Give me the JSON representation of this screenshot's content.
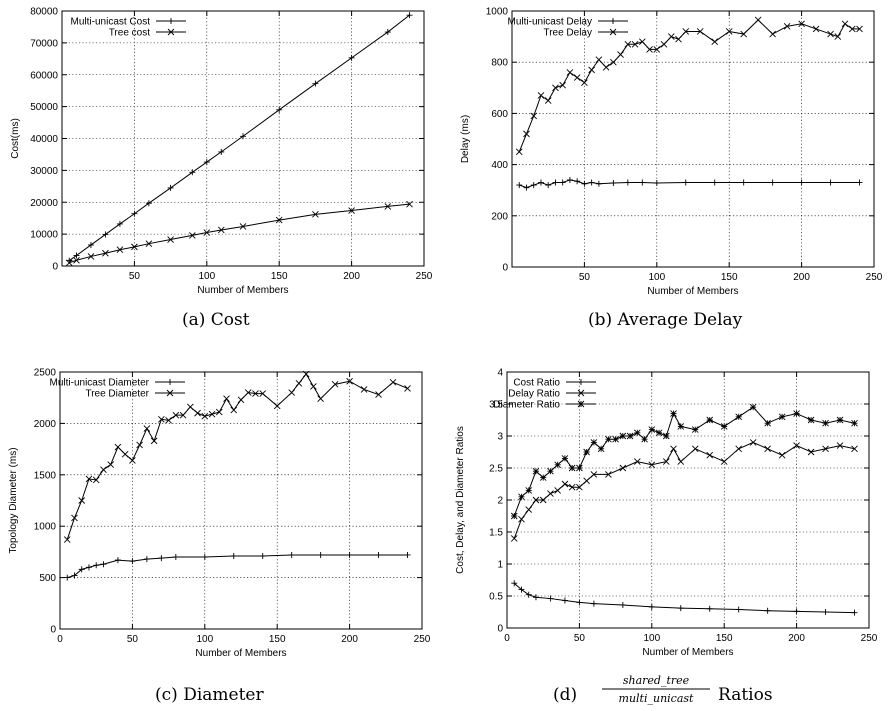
{
  "chart_data": [
    {
      "type": "line",
      "xlabel": "Number of Members",
      "ylabel": "Cost(ms)",
      "xlim": [
        0,
        250
      ],
      "ylim": [
        0,
        80000
      ],
      "xticks": [
        50,
        100,
        150,
        200,
        250
      ],
      "yticks": [
        0,
        10000,
        20000,
        30000,
        40000,
        50000,
        60000,
        70000,
        80000
      ],
      "grid": true,
      "legend_position": "top-left",
      "series": [
        {
          "name": "Multi-unicast Cost",
          "marker": "plus",
          "x": [
            5,
            10,
            20,
            30,
            40,
            50,
            60,
            75,
            90,
            100,
            110,
            125,
            150,
            175,
            200,
            225,
            240
          ],
          "y": [
            1700,
            3300,
            6600,
            9900,
            13200,
            16400,
            19700,
            24500,
            29400,
            32600,
            35800,
            40700,
            49000,
            57200,
            65300,
            73400,
            78700
          ]
        },
        {
          "name": "Tree cost",
          "marker": "cross",
          "x": [
            5,
            10,
            20,
            30,
            40,
            50,
            60,
            75,
            90,
            100,
            110,
            125,
            150,
            175,
            200,
            225,
            240
          ],
          "y": [
            1000,
            1800,
            3000,
            4000,
            5100,
            6000,
            7000,
            8300,
            9600,
            10500,
            11300,
            12400,
            14400,
            16200,
            17400,
            18700,
            19400
          ]
        }
      ],
      "caption": "(a)  Cost"
    },
    {
      "type": "line",
      "xlabel": "Number of Members",
      "ylabel": "Delay (ms)",
      "xlim": [
        0,
        250
      ],
      "ylim": [
        0,
        1000
      ],
      "xticks": [
        50,
        100,
        150,
        200,
        250
      ],
      "yticks": [
        0,
        200,
        400,
        600,
        800,
        1000
      ],
      "grid": true,
      "legend_position": "top-left",
      "series": [
        {
          "name": "Multi-unicast Delay",
          "marker": "plus",
          "x": [
            5,
            10,
            15,
            20,
            25,
            30,
            35,
            40,
            45,
            50,
            55,
            60,
            70,
            80,
            90,
            100,
            120,
            140,
            160,
            180,
            200,
            220,
            240
          ],
          "y": [
            320,
            310,
            320,
            330,
            320,
            330,
            330,
            340,
            335,
            325,
            330,
            325,
            328,
            330,
            330,
            328,
            330,
            330,
            330,
            330,
            330,
            330,
            330
          ]
        },
        {
          "name": "Tree Delay",
          "marker": "cross",
          "x": [
            5,
            10,
            15,
            20,
            25,
            30,
            35,
            40,
            45,
            50,
            55,
            60,
            65,
            70,
            75,
            80,
            85,
            90,
            95,
            100,
            105,
            110,
            115,
            120,
            130,
            140,
            150,
            160,
            170,
            180,
            190,
            200,
            210,
            220,
            225,
            230,
            235,
            240
          ],
          "y": [
            450,
            520,
            590,
            670,
            650,
            700,
            710,
            760,
            740,
            720,
            770,
            810,
            780,
            800,
            830,
            870,
            870,
            880,
            850,
            850,
            870,
            900,
            890,
            920,
            920,
            880,
            920,
            910,
            965,
            910,
            940,
            950,
            930,
            910,
            900,
            950,
            930,
            930
          ]
        }
      ],
      "caption": "(b)  Average Delay"
    },
    {
      "type": "line",
      "xlabel": "Number of Members",
      "ylabel": "Topology Diameter (ms)",
      "xlim": [
        0,
        250
      ],
      "ylim": [
        0,
        2500
      ],
      "xticks": [
        0,
        50,
        100,
        150,
        200,
        250
      ],
      "yticks": [
        0,
        500,
        1000,
        1500,
        2000,
        2500
      ],
      "grid": true,
      "legend_position": "top-left",
      "series": [
        {
          "name": "Multi-unicast Diameter",
          "marker": "plus",
          "x": [
            5,
            10,
            15,
            20,
            25,
            30,
            40,
            50,
            60,
            70,
            80,
            100,
            120,
            140,
            160,
            180,
            200,
            220,
            240
          ],
          "y": [
            500,
            520,
            580,
            600,
            620,
            630,
            670,
            660,
            680,
            690,
            700,
            700,
            710,
            710,
            720,
            720,
            720,
            720,
            720
          ]
        },
        {
          "name": "Tree Diameter",
          "marker": "cross",
          "x": [
            5,
            10,
            15,
            20,
            25,
            30,
            35,
            40,
            45,
            50,
            55,
            60,
            65,
            70,
            75,
            80,
            85,
            90,
            95,
            100,
            105,
            110,
            115,
            120,
            125,
            130,
            135,
            140,
            150,
            160,
            165,
            170,
            175,
            180,
            190,
            200,
            210,
            220,
            230,
            240
          ],
          "y": [
            870,
            1080,
            1250,
            1460,
            1450,
            1550,
            1600,
            1770,
            1700,
            1640,
            1790,
            1950,
            1830,
            2040,
            2030,
            2080,
            2080,
            2160,
            2100,
            2070,
            2090,
            2110,
            2240,
            2130,
            2230,
            2300,
            2290,
            2290,
            2170,
            2300,
            2390,
            2480,
            2360,
            2240,
            2380,
            2410,
            2330,
            2280,
            2400,
            2340
          ]
        }
      ],
      "caption": "(c)  Diameter"
    },
    {
      "type": "line",
      "xlabel": "Number of Members",
      "ylabel": "Cost, Delay, and Diameter Ratios",
      "xlim": [
        0,
        250
      ],
      "ylim": [
        0,
        4
      ],
      "xticks": [
        0,
        50,
        100,
        150,
        200,
        250
      ],
      "yticks": [
        0,
        0.5,
        1,
        1.5,
        2,
        2.5,
        3,
        3.5,
        4
      ],
      "grid": true,
      "legend_position": "top-left",
      "series": [
        {
          "name": "Cost Ratio",
          "marker": "plus",
          "x": [
            5,
            10,
            15,
            20,
            30,
            40,
            50,
            60,
            80,
            100,
            120,
            140,
            160,
            180,
            200,
            220,
            240
          ],
          "y": [
            0.7,
            0.6,
            0.52,
            0.48,
            0.46,
            0.43,
            0.4,
            0.38,
            0.36,
            0.33,
            0.31,
            0.3,
            0.29,
            0.27,
            0.26,
            0.25,
            0.24
          ]
        },
        {
          "name": "Delay Ratio",
          "marker": "cross",
          "x": [
            5,
            10,
            15,
            20,
            25,
            30,
            35,
            40,
            45,
            50,
            55,
            60,
            70,
            80,
            90,
            100,
            110,
            115,
            120,
            130,
            140,
            150,
            160,
            170,
            180,
            190,
            200,
            210,
            220,
            230,
            240
          ],
          "y": [
            1.4,
            1.7,
            1.85,
            2.0,
            2.0,
            2.1,
            2.15,
            2.25,
            2.2,
            2.2,
            2.3,
            2.4,
            2.4,
            2.5,
            2.6,
            2.55,
            2.6,
            2.8,
            2.6,
            2.8,
            2.7,
            2.6,
            2.8,
            2.9,
            2.8,
            2.7,
            2.85,
            2.75,
            2.8,
            2.85,
            2.8
          ]
        },
        {
          "name": "Diameter Ratio",
          "marker": "star",
          "x": [
            5,
            10,
            15,
            20,
            25,
            30,
            35,
            40,
            45,
            50,
            55,
            60,
            65,
            70,
            75,
            80,
            85,
            90,
            95,
            100,
            105,
            110,
            115,
            120,
            130,
            140,
            150,
            160,
            170,
            180,
            190,
            200,
            210,
            220,
            230,
            240
          ],
          "y": [
            1.75,
            2.05,
            2.15,
            2.45,
            2.35,
            2.45,
            2.55,
            2.65,
            2.5,
            2.5,
            2.75,
            2.9,
            2.8,
            2.95,
            2.95,
            3.0,
            3.0,
            3.05,
            2.95,
            3.1,
            3.05,
            3.0,
            3.35,
            3.15,
            3.1,
            3.25,
            3.15,
            3.3,
            3.45,
            3.2,
            3.3,
            3.35,
            3.25,
            3.2,
            3.25,
            3.2
          ]
        }
      ],
      "caption": "(d)"
    }
  ],
  "caption_d_fraction": {
    "numerator": "shared_tree",
    "denominator": "multi_unicast",
    "suffix": "Ratios"
  }
}
